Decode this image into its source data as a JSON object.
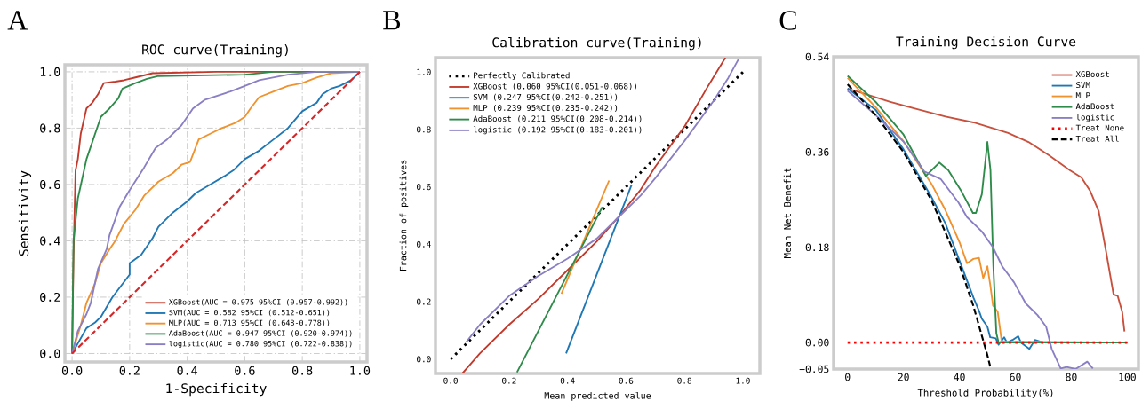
{
  "chart_data": [
    {
      "type": "line",
      "title": "ROC curve(Training)",
      "xlabel": "1-Specificity",
      "ylabel": "Sensitivity",
      "annotations": [
        "A"
      ],
      "xlim": [
        -0.025,
        1.025
      ],
      "ylim": [
        -0.03,
        1.025
      ],
      "xticks": [
        {
          "value": 0,
          "label": "0.0"
        },
        {
          "value": 0.2,
          "label": "0.2"
        },
        {
          "value": 0.4,
          "label": "0.4"
        },
        {
          "value": 0.6,
          "label": "0.6"
        },
        {
          "value": 0.8,
          "label": "0.8"
        },
        {
          "value": 1,
          "label": "1.0"
        }
      ],
      "yticks": [
        {
          "value": 0,
          "label": "0.0"
        },
        {
          "value": 0.2,
          "label": "0.2"
        },
        {
          "value": 0.4,
          "label": "0.4"
        },
        {
          "value": 0.6,
          "label": "0.6"
        },
        {
          "value": 0.8,
          "label": "0.8"
        },
        {
          "value": 1,
          "label": "1.0"
        }
      ],
      "grid": true,
      "legend": "bottom right",
      "series": [
        {
          "name": "XGBoost(AUC = 0.975 95%CI (0.957-0.992))",
          "color": "#c23a2b",
          "x": [
            0,
            0.005,
            0.012,
            0.02,
            0.03,
            0.05,
            0.07,
            0.09,
            0.11,
            0.15,
            0.18,
            0.22,
            0.28,
            0.5,
            1
          ],
          "values": [
            0,
            0.35,
            0.65,
            0.69,
            0.78,
            0.87,
            0.89,
            0.92,
            0.96,
            0.965,
            0.97,
            0.98,
            0.995,
            1,
            1
          ]
        },
        {
          "name": "SVM(AUC = 0.582 95%CI (0.512-0.651))",
          "color": "#1f77b4",
          "x": [
            0,
            0.05,
            0.08,
            0.1,
            0.14,
            0.17,
            0.2,
            0.2,
            0.24,
            0.28,
            0.3,
            0.35,
            0.4,
            0.43,
            0.48,
            0.53,
            0.56,
            0.6,
            0.65,
            0.7,
            0.75,
            0.8,
            0.85,
            0.87,
            0.9,
            0.93,
            0.97,
            1
          ],
          "values": [
            0,
            0.09,
            0.11,
            0.13,
            0.2,
            0.24,
            0.28,
            0.32,
            0.35,
            0.41,
            0.45,
            0.5,
            0.54,
            0.57,
            0.6,
            0.63,
            0.65,
            0.69,
            0.72,
            0.76,
            0.8,
            0.86,
            0.89,
            0.92,
            0.94,
            0.95,
            0.97,
            1
          ]
        },
        {
          "name": "MLP(AUC = 0.713 95%CI (0.648-0.778))",
          "color": "#f0922e",
          "x": [
            0,
            0.03,
            0.05,
            0.08,
            0.1,
            0.13,
            0.15,
            0.18,
            0.22,
            0.25,
            0.3,
            0.35,
            0.38,
            0.41,
            0.44,
            0.48,
            0.52,
            0.57,
            0.6,
            0.62,
            0.65,
            0.7,
            0.75,
            0.8,
            0.85,
            0.9,
            1
          ],
          "values": [
            0,
            0.1,
            0.18,
            0.25,
            0.32,
            0.37,
            0.4,
            0.46,
            0.51,
            0.56,
            0.61,
            0.64,
            0.67,
            0.68,
            0.76,
            0.78,
            0.8,
            0.82,
            0.84,
            0.87,
            0.91,
            0.93,
            0.95,
            0.96,
            0.98,
            0.995,
            1
          ]
        },
        {
          "name": "AdaBoost(AUC = 0.947 95%CI (0.920-0.974))",
          "color": "#2e8b4a",
          "x": [
            0,
            0.005,
            0.02,
            0.05,
            0.08,
            0.1,
            0.13,
            0.16,
            0.175,
            0.22,
            0.26,
            0.3,
            0.6,
            0.7,
            1
          ],
          "values": [
            0,
            0.4,
            0.55,
            0.69,
            0.78,
            0.84,
            0.87,
            0.905,
            0.94,
            0.96,
            0.975,
            0.985,
            0.99,
            1,
            1
          ]
        },
        {
          "name": "logistic(AUC = 0.780 95%CI (0.722-0.838))",
          "color": "#8a7fc4",
          "x": [
            0,
            0.02,
            0.05,
            0.065,
            0.09,
            0.12,
            0.13,
            0.165,
            0.2,
            0.25,
            0.29,
            0.33,
            0.38,
            0.42,
            0.46,
            0.55,
            0.6,
            0.65,
            0.75,
            0.85,
            1
          ],
          "values": [
            0,
            0.08,
            0.14,
            0.18,
            0.3,
            0.37,
            0.42,
            0.52,
            0.58,
            0.66,
            0.73,
            0.76,
            0.81,
            0.87,
            0.9,
            0.93,
            0.95,
            0.97,
            0.99,
            1,
            1
          ]
        },
        {
          "color": "#d62728",
          "line_style": "dashed",
          "x": [
            0,
            1
          ],
          "values": [
            0,
            1
          ]
        }
      ]
    },
    {
      "type": "line",
      "title": "Calibration curve(Training)",
      "xlabel": "Mean predicted value",
      "ylabel": "Fraction of positives",
      "annotations": [
        "B"
      ],
      "xlim": [
        -0.052,
        1.058
      ],
      "ylim": [
        -0.05,
        1.05
      ],
      "xticks": [
        {
          "value": 0,
          "label": "0.0"
        },
        {
          "value": 0.2,
          "label": "0.2"
        },
        {
          "value": 0.4,
          "label": "0.4"
        },
        {
          "value": 0.6,
          "label": "0.6"
        },
        {
          "value": 0.8,
          "label": "0.8"
        },
        {
          "value": 1,
          "label": "1.0"
        }
      ],
      "yticks": [
        {
          "value": 0,
          "label": "0.0"
        },
        {
          "value": 0.2,
          "label": "0.2"
        },
        {
          "value": 0.4,
          "label": "0.4"
        },
        {
          "value": 0.6,
          "label": "0.6"
        },
        {
          "value": 0.8,
          "label": "0.8"
        },
        {
          "value": 1,
          "label": "1.0"
        }
      ],
      "legend": "top left",
      "series": [
        {
          "name": "Perfectly Calibrated",
          "color": "#000000",
          "line_style": "dotted",
          "x": [
            0,
            1
          ],
          "values": [
            0,
            1
          ]
        },
        {
          "name": "XGBoost (0.060 95%CI(0.051-0.068))",
          "color": "#c23a2b",
          "x": [
            0.04,
            0.1,
            0.2,
            0.3,
            0.4,
            0.5,
            0.57,
            0.65,
            0.7,
            0.8,
            0.88,
            0.94
          ],
          "values": [
            -0.05,
            0.02,
            0.12,
            0.21,
            0.31,
            0.41,
            0.49,
            0.59,
            0.67,
            0.81,
            0.95,
            1.05
          ]
        },
        {
          "name": "SVM (0.247 95%CI(0.242-0.251))",
          "color": "#1f77b4",
          "x": [
            0.395,
            0.619
          ],
          "values": [
            0.02,
            0.607
          ]
        },
        {
          "name": "MLP (0.239 95%CI(0.235-0.242))",
          "color": "#f0922e",
          "x": [
            0.379,
            0.542
          ],
          "values": [
            0.228,
            0.622
          ]
        },
        {
          "name": "AdaBoost (0.211 95%CI(0.208-0.214))",
          "color": "#2e8b4a",
          "x": [
            0.227,
            0.519
          ],
          "values": [
            -0.046,
            0.53
          ]
        },
        {
          "name": "logistic (0.192 95%CI(0.183-0.201))",
          "color": "#8a7fc4",
          "x": [
            0.054,
            0.1,
            0.2,
            0.3,
            0.4,
            0.5,
            0.57,
            0.65,
            0.7,
            0.8,
            0.9,
            0.95,
            0.985
          ],
          "values": [
            0.06,
            0.12,
            0.22,
            0.29,
            0.35,
            0.42,
            0.49,
            0.57,
            0.63,
            0.76,
            0.9,
            0.98,
            1.045
          ]
        }
      ]
    },
    {
      "type": "line",
      "title": "Training Decision Curve",
      "xlabel": "Threshold Probability(%)",
      "ylabel": "Mean Net Benefit",
      "annotations": [
        "C"
      ],
      "xlim": [
        -5,
        104
      ],
      "ylim": [
        -0.05,
        0.54
      ],
      "xticks": [
        0,
        20,
        40,
        60,
        80,
        100
      ],
      "yticks": [
        {
          "value": -0.05,
          "label": "−0.05"
        },
        {
          "value": 0,
          "label": "0.00"
        },
        {
          "value": 0.18,
          "label": "0.18"
        },
        {
          "value": 0.36,
          "label": "0.36"
        },
        {
          "value": 0.54,
          "label": "0.54"
        }
      ],
      "legend": "top right",
      "series": [
        {
          "name": "XGBoost",
          "color": "#c8503c",
          "x": [
            0,
            5,
            15,
            25,
            35,
            45,
            52,
            57.4,
            64.7,
            72,
            79.4,
            83.6,
            86.7,
            89.8,
            92.5,
            95.1,
            96.6,
            98.2,
            99
          ],
          "values": [
            0.48,
            0.472,
            0.455,
            0.441,
            0.427,
            0.416,
            0.405,
            0.396,
            0.379,
            0.354,
            0.326,
            0.312,
            0.287,
            0.248,
            0.17,
            0.091,
            0.088,
            0.058,
            0.021
          ]
        },
        {
          "name": "SVM",
          "color": "#1f77b4",
          "x": [
            0,
            10,
            20,
            30,
            35,
            40,
            45,
            47,
            48,
            50,
            51,
            53,
            54,
            56,
            57,
            59,
            61,
            62,
            65,
            67,
            70,
            100
          ],
          "values": [
            0.48,
            0.44,
            0.365,
            0.275,
            0.225,
            0.155,
            0.085,
            0.06,
            0.045,
            0.03,
            0.01,
            0.008,
            -0.004,
            0.01,
            0,
            0.005,
            0.012,
            0,
            -0.012,
            0.005,
            0,
            0
          ]
        },
        {
          "name": "MLP",
          "color": "#f0922e",
          "x": [
            0,
            10,
            20,
            30,
            35,
            40,
            42.7,
            45,
            47,
            48.5,
            50,
            51,
            52,
            53.7,
            55.1,
            100
          ],
          "values": [
            0.5,
            0.445,
            0.38,
            0.3,
            0.25,
            0.19,
            0.15,
            0.158,
            0.16,
            0.122,
            0.144,
            0.11,
            0.07,
            0.058,
            0.002,
            0
          ]
        },
        {
          "name": "AdaBoost",
          "color": "#2e8b4a",
          "x": [
            0,
            10,
            20,
            28,
            32.8,
            36,
            40.6,
            44.8,
            45.9,
            48,
            50,
            51.1,
            52.1,
            53.2,
            54,
            100
          ],
          "values": [
            0.504,
            0.455,
            0.393,
            0.315,
            0.34,
            0.326,
            0.287,
            0.245,
            0.245,
            0.28,
            0.379,
            0.326,
            0.147,
            0.018,
            0,
            0
          ]
        },
        {
          "name": "logistic",
          "color": "#8a7fc4",
          "x": [
            0,
            10,
            20,
            27.5,
            33.3,
            39.6,
            42.7,
            48,
            52,
            55.3,
            59.5,
            63.7,
            67.9,
            71,
            73,
            75.7,
            76.2,
            78.3,
            81.5,
            85.7,
            87.7
          ],
          "values": [
            0.476,
            0.43,
            0.38,
            0.323,
            0.309,
            0.265,
            0.237,
            0.21,
            0.18,
            0.144,
            0.114,
            0.074,
            0.052,
            0.03,
            -0.012,
            -0.043,
            -0.049,
            -0.046,
            -0.05,
            -0.036,
            -0.049
          ]
        },
        {
          "name": "Treat None",
          "color": "#ff0000",
          "line_style": "dotted",
          "x": [
            0,
            100
          ],
          "values": [
            0,
            0
          ]
        },
        {
          "name": "Treat All",
          "color": "#000000",
          "line_style": "dashed",
          "x": [
            0,
            10,
            20,
            30,
            40,
            45,
            50,
            51
          ],
          "values": [
            0.488,
            0.43,
            0.36,
            0.269,
            0.147,
            0.069,
            -0.024,
            -0.045
          ]
        }
      ]
    }
  ]
}
